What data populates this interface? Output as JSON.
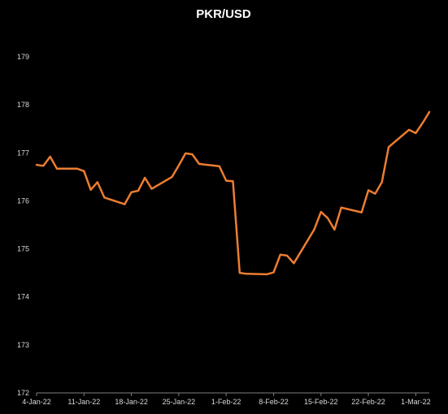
{
  "chart_data": {
    "type": "line",
    "title": "PKR/USD",
    "xlabel": "",
    "ylabel": "",
    "ylim": [
      172,
      179
    ],
    "yticks": [
      172,
      173,
      174,
      175,
      176,
      177,
      178,
      179
    ],
    "xlim": [
      "2022-01-04",
      "2022-03-03"
    ],
    "xticks": [
      {
        "date": "2022-01-04",
        "label": "4-Jan-22"
      },
      {
        "date": "2022-01-11",
        "label": "11-Jan-22"
      },
      {
        "date": "2022-01-18",
        "label": "18-Jan-22"
      },
      {
        "date": "2022-01-25",
        "label": "25-Jan-22"
      },
      {
        "date": "2022-02-01",
        "label": "1-Feb-22"
      },
      {
        "date": "2022-02-08",
        "label": "8-Feb-22"
      },
      {
        "date": "2022-02-15",
        "label": "15-Feb-22"
      },
      {
        "date": "2022-02-22",
        "label": "22-Feb-22"
      },
      {
        "date": "2022-03-01",
        "label": "1-Mar-22"
      }
    ],
    "grid": false,
    "legend": "none",
    "line_color": "#ed7d31",
    "background_color": "#000000",
    "text_color": "#ffffff",
    "axis_color": "#7f7f7f",
    "series": [
      {
        "x": [
          "2022-01-04",
          "2022-01-05",
          "2022-01-06",
          "2022-01-07",
          "2022-01-10",
          "2022-01-11",
          "2022-01-12",
          "2022-01-13",
          "2022-01-14",
          "2022-01-17",
          "2022-01-18",
          "2022-01-19",
          "2022-01-20",
          "2022-01-21",
          "2022-01-24",
          "2022-01-25",
          "2022-01-26",
          "2022-01-27",
          "2022-01-28",
          "2022-01-31",
          "2022-02-01",
          "2022-02-02",
          "2022-02-03",
          "2022-02-04",
          "2022-02-07",
          "2022-02-08",
          "2022-02-09",
          "2022-02-10",
          "2022-02-11",
          "2022-02-14",
          "2022-02-15",
          "2022-02-16",
          "2022-02-17",
          "2022-02-18",
          "2022-02-21",
          "2022-02-22",
          "2022-02-23",
          "2022-02-24",
          "2022-02-25",
          "2022-02-28",
          "2022-03-01",
          "2022-03-02",
          "2022-03-03"
        ],
        "values": [
          176.75,
          176.73,
          176.92,
          176.67,
          176.67,
          176.62,
          176.23,
          176.39,
          176.07,
          175.93,
          176.18,
          176.21,
          176.48,
          176.25,
          176.5,
          176.74,
          176.99,
          176.97,
          176.77,
          176.72,
          176.42,
          176.41,
          174.5,
          174.48,
          174.47,
          174.51,
          174.88,
          174.86,
          174.7,
          175.4,
          175.77,
          175.64,
          175.4,
          175.86,
          175.76,
          176.22,
          176.15,
          176.39,
          177.12,
          177.48,
          177.41,
          177.62,
          177.85
        ]
      }
    ]
  }
}
